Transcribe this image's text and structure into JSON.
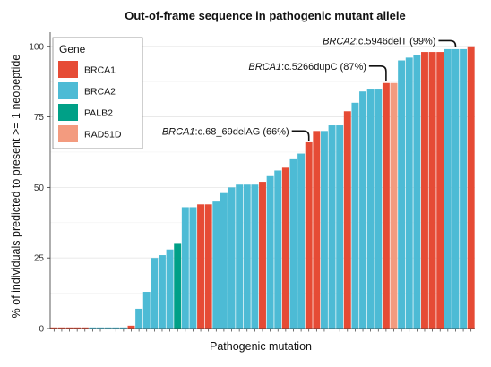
{
  "chart_data": {
    "type": "bar",
    "title": "Out-of-frame sequence in pathogenic mutant allele",
    "xlabel": "Pathogenic mutation",
    "ylabel": "% of individuals predicted to present >= 1 neopeptide",
    "ylim": [
      0,
      105
    ],
    "yticks": [
      0,
      25,
      50,
      75,
      100
    ],
    "grid": true,
    "legend": {
      "title": "Gene",
      "position": "top-left",
      "entries": [
        {
          "label": "BRCA1",
          "color": "#E64B35"
        },
        {
          "label": "BRCA2",
          "color": "#4DBBD5"
        },
        {
          "label": "PALB2",
          "color": "#00A087"
        },
        {
          "label": "RAD51D",
          "color": "#F39B7F"
        }
      ]
    },
    "bars": [
      {
        "gene": "BRCA1",
        "value": 0
      },
      {
        "gene": "BRCA1",
        "value": 0
      },
      {
        "gene": "BRCA1",
        "value": 0
      },
      {
        "gene": "BRCA1",
        "value": 0
      },
      {
        "gene": "BRCA1",
        "value": 0
      },
      {
        "gene": "BRCA2",
        "value": 0
      },
      {
        "gene": "BRCA2",
        "value": 0
      },
      {
        "gene": "BRCA2",
        "value": 0
      },
      {
        "gene": "BRCA2",
        "value": 0
      },
      {
        "gene": "BRCA2",
        "value": 0
      },
      {
        "gene": "BRCA1",
        "value": 1
      },
      {
        "gene": "BRCA2",
        "value": 7
      },
      {
        "gene": "BRCA2",
        "value": 13
      },
      {
        "gene": "BRCA2",
        "value": 25
      },
      {
        "gene": "BRCA2",
        "value": 26
      },
      {
        "gene": "BRCA2",
        "value": 28
      },
      {
        "gene": "PALB2",
        "value": 30
      },
      {
        "gene": "BRCA2",
        "value": 43
      },
      {
        "gene": "BRCA2",
        "value": 43
      },
      {
        "gene": "BRCA1",
        "value": 44
      },
      {
        "gene": "BRCA1",
        "value": 44
      },
      {
        "gene": "BRCA2",
        "value": 45
      },
      {
        "gene": "BRCA2",
        "value": 48
      },
      {
        "gene": "BRCA2",
        "value": 50
      },
      {
        "gene": "BRCA2",
        "value": 51
      },
      {
        "gene": "BRCA2",
        "value": 51
      },
      {
        "gene": "BRCA2",
        "value": 51
      },
      {
        "gene": "BRCA1",
        "value": 52
      },
      {
        "gene": "BRCA2",
        "value": 54
      },
      {
        "gene": "BRCA2",
        "value": 56
      },
      {
        "gene": "BRCA1",
        "value": 57
      },
      {
        "gene": "BRCA2",
        "value": 60
      },
      {
        "gene": "BRCA2",
        "value": 62
      },
      {
        "gene": "BRCA1",
        "value": 66
      },
      {
        "gene": "BRCA1",
        "value": 70
      },
      {
        "gene": "BRCA2",
        "value": 70
      },
      {
        "gene": "BRCA2",
        "value": 72
      },
      {
        "gene": "BRCA2",
        "value": 72
      },
      {
        "gene": "BRCA1",
        "value": 77
      },
      {
        "gene": "BRCA2",
        "value": 80
      },
      {
        "gene": "BRCA2",
        "value": 84
      },
      {
        "gene": "BRCA2",
        "value": 85
      },
      {
        "gene": "BRCA2",
        "value": 85
      },
      {
        "gene": "BRCA1",
        "value": 87
      },
      {
        "gene": "RAD51D",
        "value": 87
      },
      {
        "gene": "BRCA2",
        "value": 95
      },
      {
        "gene": "BRCA2",
        "value": 96
      },
      {
        "gene": "BRCA2",
        "value": 97
      },
      {
        "gene": "BRCA1",
        "value": 98
      },
      {
        "gene": "BRCA1",
        "value": 98
      },
      {
        "gene": "BRCA1",
        "value": 98
      },
      {
        "gene": "BRCA2",
        "value": 99
      },
      {
        "gene": "BRCA2",
        "value": 99
      },
      {
        "gene": "BRCA2",
        "value": 99
      },
      {
        "gene": "BRCA1",
        "value": 100
      }
    ],
    "annotations": [
      {
        "gene": "BRCA2",
        "text": ":c.5946delT (99%)",
        "bar_index": 52,
        "text_value": 102
      },
      {
        "gene": "BRCA1",
        "text": ":c.5266dupC (87%)",
        "bar_index": 43,
        "text_value": 93
      },
      {
        "gene": "BRCA1",
        "text": ":c.68_69delAG (66%)",
        "bar_index": 33,
        "text_value": 70
      }
    ]
  }
}
